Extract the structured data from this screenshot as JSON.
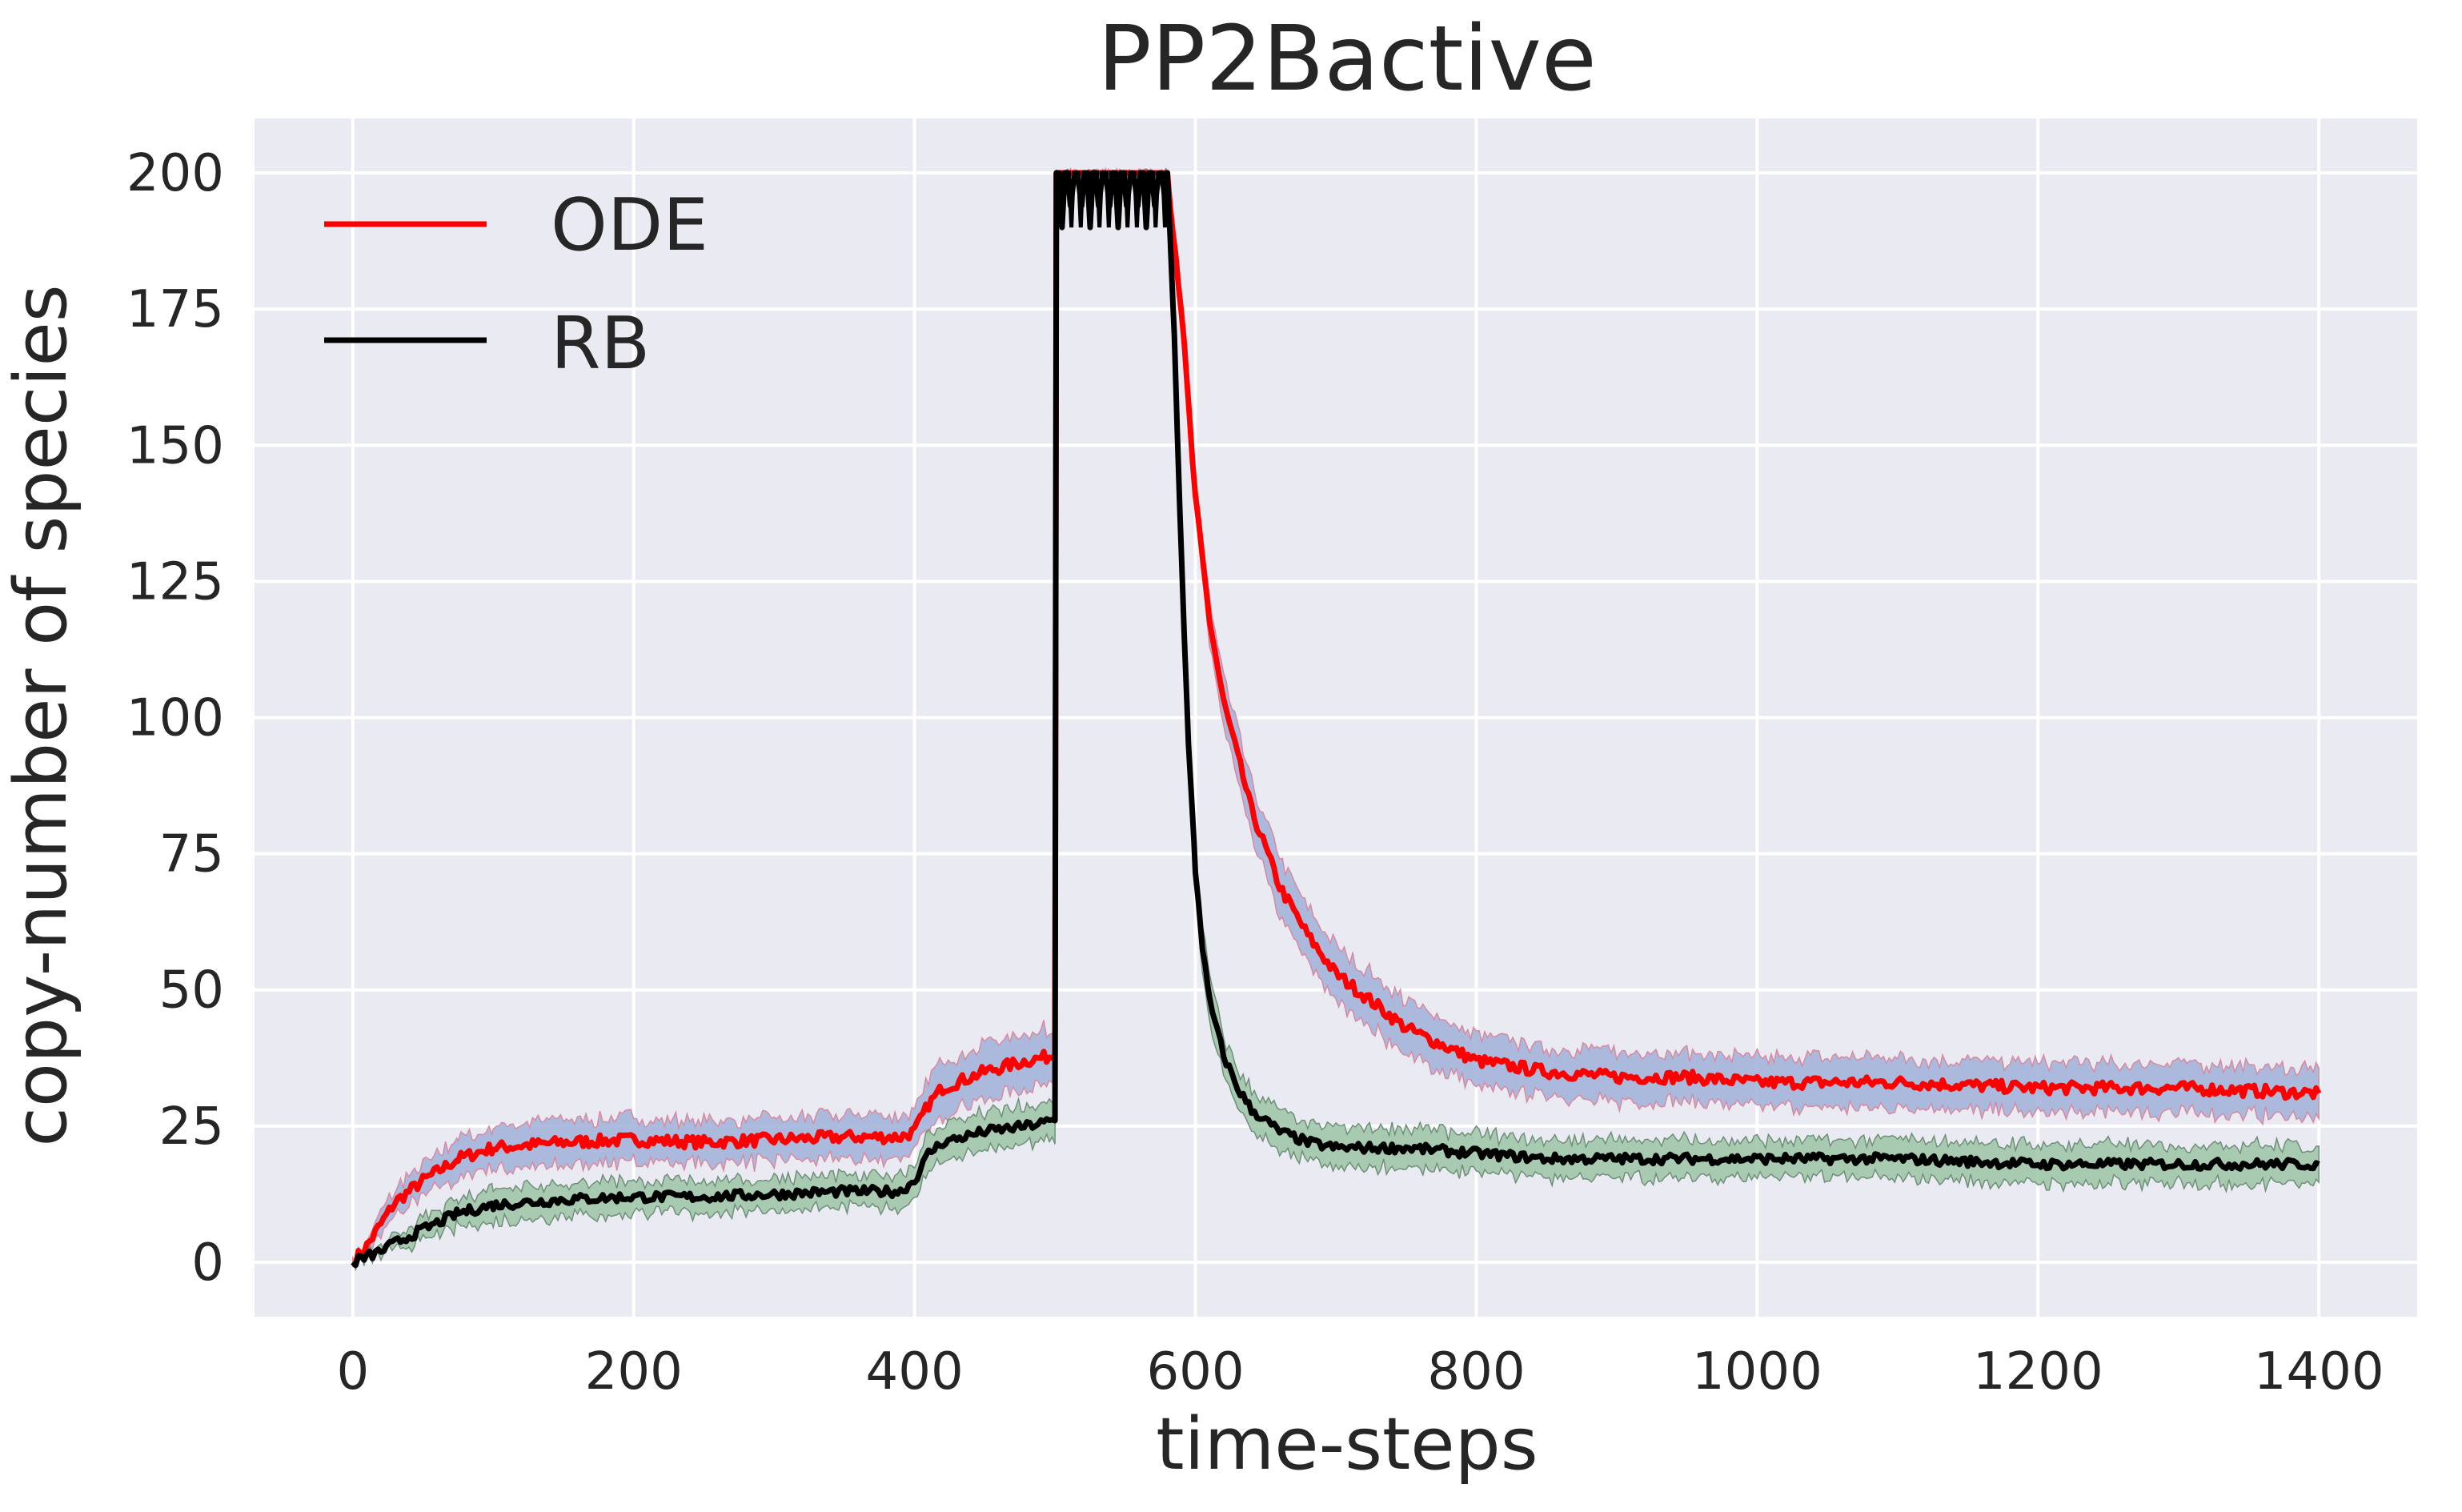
{
  "chart_data": {
    "type": "line",
    "title": "PP2Bactive",
    "xlabel": "time-steps",
    "ylabel": "copy-number of species",
    "xlim": [
      -70,
      1470
    ],
    "ylim": [
      -10,
      210
    ],
    "xticks": [
      0,
      200,
      400,
      600,
      800,
      1000,
      1200,
      1400
    ],
    "yticks": [
      0,
      25,
      50,
      75,
      100,
      125,
      150,
      175,
      200
    ],
    "xtick_labels": [
      "0",
      "200",
      "400",
      "600",
      "800",
      "1000",
      "1200",
      "1400"
    ],
    "ytick_labels": [
      "0",
      "25",
      "50",
      "75",
      "100",
      "125",
      "150",
      "175",
      "200"
    ],
    "grid": true,
    "background": "#eaeaf2",
    "legend_position": "top-left",
    "legend": [
      "ODE",
      "RB"
    ],
    "series": [
      {
        "name": "ODE",
        "color": "#ff0000",
        "band_color": "#9fb0d8",
        "x": [
          0,
          10,
          20,
          30,
          50,
          75,
          100,
          150,
          200,
          250,
          300,
          350,
          390,
          400,
          410,
          420,
          450,
          480,
          500,
          501,
          520,
          580,
          590,
          600,
          610,
          620,
          640,
          660,
          680,
          700,
          750,
          800,
          850,
          900,
          950,
          1000,
          1100,
          1200,
          1300,
          1400
        ],
        "y": [
          0,
          3,
          7,
          11,
          15,
          19,
          21,
          22,
          22.5,
          22,
          22.5,
          23,
          23,
          24,
          29,
          32,
          35,
          37,
          38,
          200,
          200,
          200,
          175,
          140,
          118,
          103,
          83,
          69,
          60,
          53,
          43,
          37,
          35,
          34,
          34,
          33,
          33,
          32,
          32,
          31
        ],
        "band_halfwidth": [
          0,
          1,
          2,
          2.5,
          3,
          3.5,
          4,
          4,
          4,
          4,
          4,
          4,
          4,
          4,
          4.5,
          5,
          5,
          5,
          5,
          0,
          0,
          0,
          2,
          3,
          4,
          4.5,
          5,
          5,
          5,
          5,
          5,
          4.5,
          4.5,
          4.5,
          4.5,
          4.5,
          4.5,
          4.5,
          4.5,
          4.5
        ]
      },
      {
        "name": "RB",
        "color": "#000000",
        "band_color": "#9cc4a6",
        "x": [
          0,
          10,
          20,
          30,
          50,
          75,
          100,
          150,
          200,
          250,
          300,
          350,
          390,
          400,
          410,
          420,
          450,
          480,
          500,
          501,
          580,
          585,
          590,
          595,
          600,
          605,
          610,
          620,
          630,
          640,
          660,
          680,
          700,
          750,
          800,
          850,
          900,
          1000,
          1100,
          1200,
          1300,
          1400
        ],
        "y": [
          0,
          1,
          2,
          3.5,
          6,
          9,
          10.5,
          11.5,
          12,
          12,
          12.5,
          13,
          13,
          15,
          20,
          22,
          24,
          25,
          26,
          200,
          200,
          170,
          130,
          95,
          72,
          58,
          48,
          38,
          32,
          28,
          24,
          22,
          21,
          21,
          20,
          19,
          19,
          19,
          19,
          18,
          18,
          18
        ],
        "band_halfwidth": [
          0,
          0.5,
          1,
          1.5,
          2,
          2.5,
          3,
          3,
          3,
          3,
          3,
          3,
          3,
          3,
          3.5,
          3.5,
          3.5,
          3.5,
          3.5,
          0,
          0,
          3,
          4,
          4,
          4,
          4,
          4,
          3.5,
          3.5,
          3.5,
          3.5,
          3.5,
          3.5,
          3.5,
          3.5,
          3.5,
          3.5,
          3.5,
          3.5,
          3.5,
          3.5,
          3.5
        ]
      }
    ],
    "spike": {
      "x_start": 500,
      "x_end": 580,
      "top": 200,
      "dip": 190,
      "oscillations": 12
    }
  }
}
